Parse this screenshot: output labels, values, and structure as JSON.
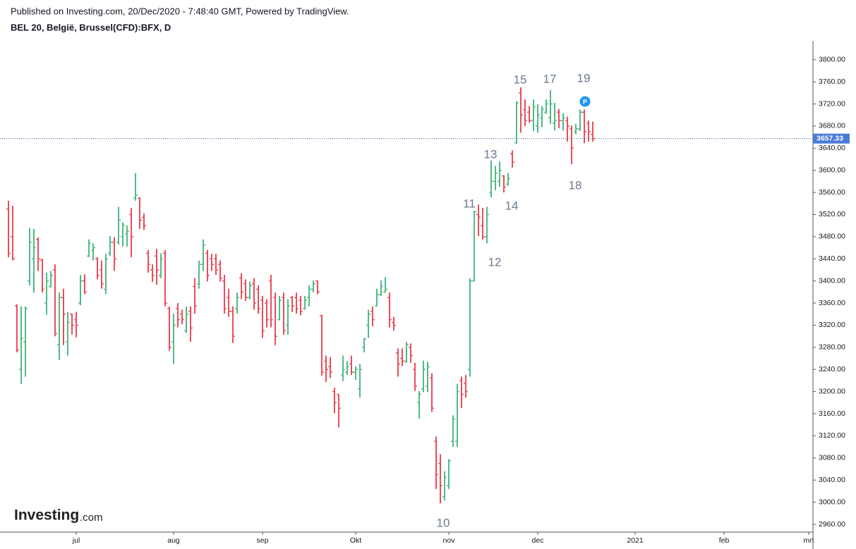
{
  "header": {
    "published": "Published on Investing.com, 20/Dec/2020 - 7:48:40 GMT, Powered by TradingView.",
    "logo": "Investing",
    "logo_suffix": ".com"
  },
  "chart_data": {
    "type": "ohlc",
    "title": "BEL 20, België, Brussel(CFD):BFX, D",
    "up_color": "#53b987",
    "down_color": "#eb4d5c",
    "open": [
      3530,
      3480,
      3355,
      3240,
      3290,
      3400,
      3440,
      3475,
      3438,
      3360,
      3390,
      3420,
      3285,
      3370,
      3290,
      3340,
      3330,
      3360,
      3400,
      3445,
      3455,
      3440,
      3420,
      3385,
      3450,
      3470,
      3470,
      3480,
      3485,
      3520,
      3550,
      3550,
      3515,
      3450,
      3420,
      3445,
      3410,
      3450,
      3350,
      3290,
      3350,
      3340,
      3310,
      3345,
      3390,
      3395,
      3430,
      3450,
      3440,
      3440,
      3430,
      3400,
      3370,
      3345,
      3350,
      3405,
      3395,
      3370,
      3395,
      3385,
      3365,
      3360,
      3400,
      3370,
      3330,
      3370,
      3320,
      3370,
      3370,
      3365,
      3350,
      3370,
      3385,
      3400,
      3337,
      3255,
      3245,
      3200,
      3195,
      3230,
      3235,
      3250,
      3235,
      3205,
      3280,
      3320,
      3345,
      3355,
      3375,
      3380,
      3370,
      3325,
      3270,
      3260,
      3255,
      3280,
      3240,
      3180,
      3205,
      3210,
      3225,
      3110,
      3070,
      3010,
      3030,
      3110,
      3110,
      3220,
      3215,
      3240,
      3400,
      3520,
      3500,
      3480,
      3560,
      3580,
      3580,
      3590,
      3575,
      3630,
      3650,
      3740,
      3710,
      3705,
      3690,
      3680,
      3695,
      3705,
      3695,
      3685,
      3705,
      3690,
      3690,
      3675,
      3670,
      3675,
      3705,
      3685,
      3665
    ],
    "high": [
      3545,
      3536,
      3358,
      3354,
      3354,
      3496,
      3494,
      3479,
      3440,
      3415,
      3418,
      3430,
      3379,
      3386,
      3344,
      3341,
      3344,
      3411,
      3412,
      3475,
      3468,
      3443,
      3437,
      3449,
      3481,
      3479,
      3534,
      3506,
      3500,
      3532,
      3595,
      3551,
      3522,
      3456,
      3430,
      3458,
      3450,
      3456,
      3354,
      3341,
      3360,
      3348,
      3354,
      3354,
      3405,
      3437,
      3475,
      3456,
      3449,
      3449,
      3437,
      3411,
      3386,
      3354,
      3379,
      3414,
      3403,
      3399,
      3405,
      3392,
      3373,
      3367,
      3411,
      3379,
      3373,
      3379,
      3367,
      3373,
      3379,
      3373,
      3373,
      3392,
      3401,
      3401,
      3339,
      3265,
      3262,
      3207,
      3195,
      3265,
      3255,
      3265,
      3246,
      3250,
      3297,
      3348,
      3354,
      3386,
      3401,
      3407,
      3379,
      3335,
      3278,
      3278,
      3290,
      3287,
      3252,
      3201,
      3256,
      3254,
      3233,
      3119,
      3087,
      3056,
      3078,
      3157,
      3214,
      3227,
      3230,
      3405,
      3527,
      3538,
      3532,
      3534,
      3618,
      3608,
      3616,
      3591,
      3595,
      3636,
      3725,
      3750,
      3728,
      3716,
      3728,
      3720,
      3716,
      3728,
      3745,
      3722,
      3711,
      3703,
      3697,
      3681,
      3684,
      3710,
      3710,
      3690,
      3688
    ],
    "low": [
      3443,
      3437,
      3271,
      3214,
      3227,
      3392,
      3379,
      3418,
      3379,
      3339,
      3388,
      3300,
      3257,
      3284,
      3265,
      3303,
      3298,
      3356,
      3376,
      3443,
      3437,
      3403,
      3386,
      3376,
      3445,
      3418,
      3466,
      3462,
      3462,
      3443,
      3545,
      3494,
      3492,
      3415,
      3398,
      3393,
      3405,
      3354,
      3274,
      3250,
      3316,
      3322,
      3306,
      3290,
      3341,
      3386,
      3418,
      3399,
      3418,
      3411,
      3399,
      3341,
      3335,
      3288,
      3341,
      3367,
      3364,
      3367,
      3348,
      3341,
      3297,
      3316,
      3316,
      3284,
      3329,
      3303,
      3303,
      3344,
      3341,
      3338,
      3348,
      3354,
      3379,
      3376,
      3229,
      3217,
      3224,
      3161,
      3135,
      3219,
      3230,
      3230,
      3221,
      3189,
      3271,
      3297,
      3318,
      3354,
      3373,
      3379,
      3316,
      3310,
      3227,
      3246,
      3252,
      3252,
      3201,
      3151,
      3199,
      3199,
      3163,
      3024,
      2998,
      3003,
      3024,
      3100,
      3100,
      3170,
      3189,
      3227,
      3399,
      3481,
      3475,
      3468,
      3551,
      3564,
      3570,
      3560,
      3572,
      3605,
      3648,
      3668,
      3680,
      3686,
      3671,
      3668,
      3678,
      3702,
      3684,
      3672,
      3676,
      3672,
      3652,
      3611,
      3665,
      3671,
      3649,
      3652,
      3652
    ],
    "close": [
      3450,
      3440,
      3275,
      3296,
      3350,
      3470,
      3460,
      3440,
      3385,
      3400,
      3410,
      3305,
      3370,
      3340,
      3325,
      3320,
      3320,
      3400,
      3380,
      3468,
      3460,
      3410,
      3395,
      3440,
      3470,
      3440,
      3510,
      3500,
      3490,
      3480,
      3555,
      3510,
      3500,
      3430,
      3410,
      3420,
      3440,
      3360,
      3280,
      3320,
      3330,
      3330,
      3340,
      3315,
      3355,
      3430,
      3465,
      3410,
      3430,
      3420,
      3405,
      3350,
      3345,
      3300,
      3370,
      3380,
      3370,
      3392,
      3360,
      3350,
      3310,
      3330,
      3330,
      3300,
      3365,
      3310,
      3355,
      3355,
      3350,
      3345,
      3365,
      3385,
      3395,
      3380,
      3235,
      3240,
      3235,
      3180,
      3170,
      3240,
      3245,
      3235,
      3240,
      3240,
      3295,
      3340,
      3330,
      3375,
      3390,
      3385,
      3330,
      3320,
      3250,
      3255,
      3285,
      3265,
      3210,
      3195,
      3240,
      3245,
      3170,
      3050,
      3030,
      3045,
      3075,
      3150,
      3200,
      3195,
      3200,
      3400,
      3525,
      3515,
      3480,
      3520,
      3580,
      3595,
      3600,
      3570,
      3585,
      3615,
      3722,
      3700,
      3690,
      3690,
      3715,
      3700,
      3710,
      3720,
      3720,
      3690,
      3690,
      3695,
      3680,
      3640,
      3675,
      3705,
      3670,
      3670,
      3657.33
    ],
    "xlim": [
      -2,
      190
    ],
    "xticks": [
      {
        "value": 16,
        "label": "jul"
      },
      {
        "value": 39,
        "label": "aug"
      },
      {
        "value": 60,
        "label": "sep"
      },
      {
        "value": 82,
        "label": "Okt"
      },
      {
        "value": 104,
        "label": "nov"
      },
      {
        "value": 125,
        "label": "dec"
      },
      {
        "value": 148,
        "label": "2021"
      },
      {
        "value": 169,
        "label": "feb"
      },
      {
        "value": 189,
        "label": "mrt"
      }
    ],
    "ylim": [
      2946,
      3834
    ],
    "yticks": [
      {
        "value": 2960,
        "label": "2960.00"
      },
      {
        "value": 3000,
        "label": "3000.00"
      },
      {
        "value": 3040,
        "label": "3040.00"
      },
      {
        "value": 3080,
        "label": "3080.00"
      },
      {
        "value": 3120,
        "label": "3120.00"
      },
      {
        "value": 3160,
        "label": "3160.00"
      },
      {
        "value": 3200,
        "label": "3200.00"
      },
      {
        "value": 3240,
        "label": "3240.00"
      },
      {
        "value": 3280,
        "label": "3280.00"
      },
      {
        "value": 3320,
        "label": "3320.00"
      },
      {
        "value": 3360,
        "label": "3360.00"
      },
      {
        "value": 3400,
        "label": "3400.00"
      },
      {
        "value": 3440,
        "label": "3440.00"
      },
      {
        "value": 3480,
        "label": "3480.00"
      },
      {
        "value": 3520,
        "label": "3520.00"
      },
      {
        "value": 3560,
        "label": "3560.00"
      },
      {
        "value": 3600,
        "label": "3600.00"
      },
      {
        "value": 3640,
        "label": "3640.00"
      },
      {
        "value": 3680,
        "label": "3680.00"
      },
      {
        "value": 3720,
        "label": "3720.00"
      },
      {
        "value": 3760,
        "label": "3760.00"
      },
      {
        "value": 3800,
        "label": "3800.00"
      }
    ],
    "last_price_color": "#4a7bd8",
    "marker": "P",
    "annotations": [
      "10",
      "11",
      "12",
      "13",
      "14",
      "15",
      "17",
      "18",
      "19"
    ]
  }
}
